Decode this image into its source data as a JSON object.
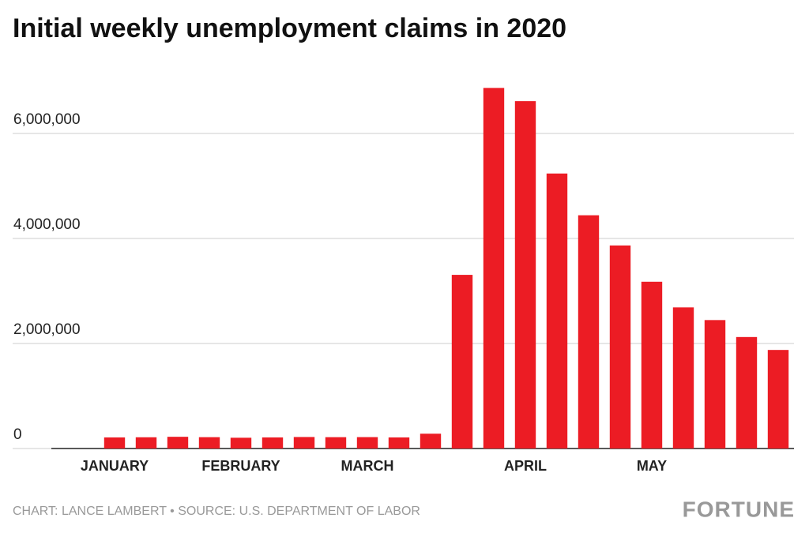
{
  "chart_data": {
    "type": "bar",
    "title": "Initial weekly unemployment claims in 2020",
    "categories": [
      "JANUARY",
      null,
      null,
      null,
      "FEBRUARY",
      null,
      null,
      null,
      "MARCH",
      null,
      null,
      null,
      null,
      "APRIL",
      null,
      null,
      null,
      "MAY",
      null,
      null,
      null,
      null
    ],
    "values": [
      211000,
      214000,
      223000,
      216000,
      205000,
      211000,
      219000,
      216000,
      217000,
      211000,
      282000,
      3307000,
      6867000,
      6615000,
      5237000,
      4442000,
      3867000,
      3176000,
      2687000,
      2446000,
      2123000,
      1877000
    ],
    "color": "#ec1c24",
    "ylim": [
      0,
      7000000
    ],
    "yticks": [
      0,
      {
        "value": 2000000,
        "label": "2,000,000"
      },
      {
        "value": 4000000,
        "label": "4,000,000"
      },
      {
        "value": 6000000,
        "label": "6,000,000"
      }
    ],
    "grid": true,
    "source": "CHART: LANCE LAMBERT • SOURCE: U.S. DEPARTMENT OF LABOR",
    "brand": "FORTUNE"
  }
}
